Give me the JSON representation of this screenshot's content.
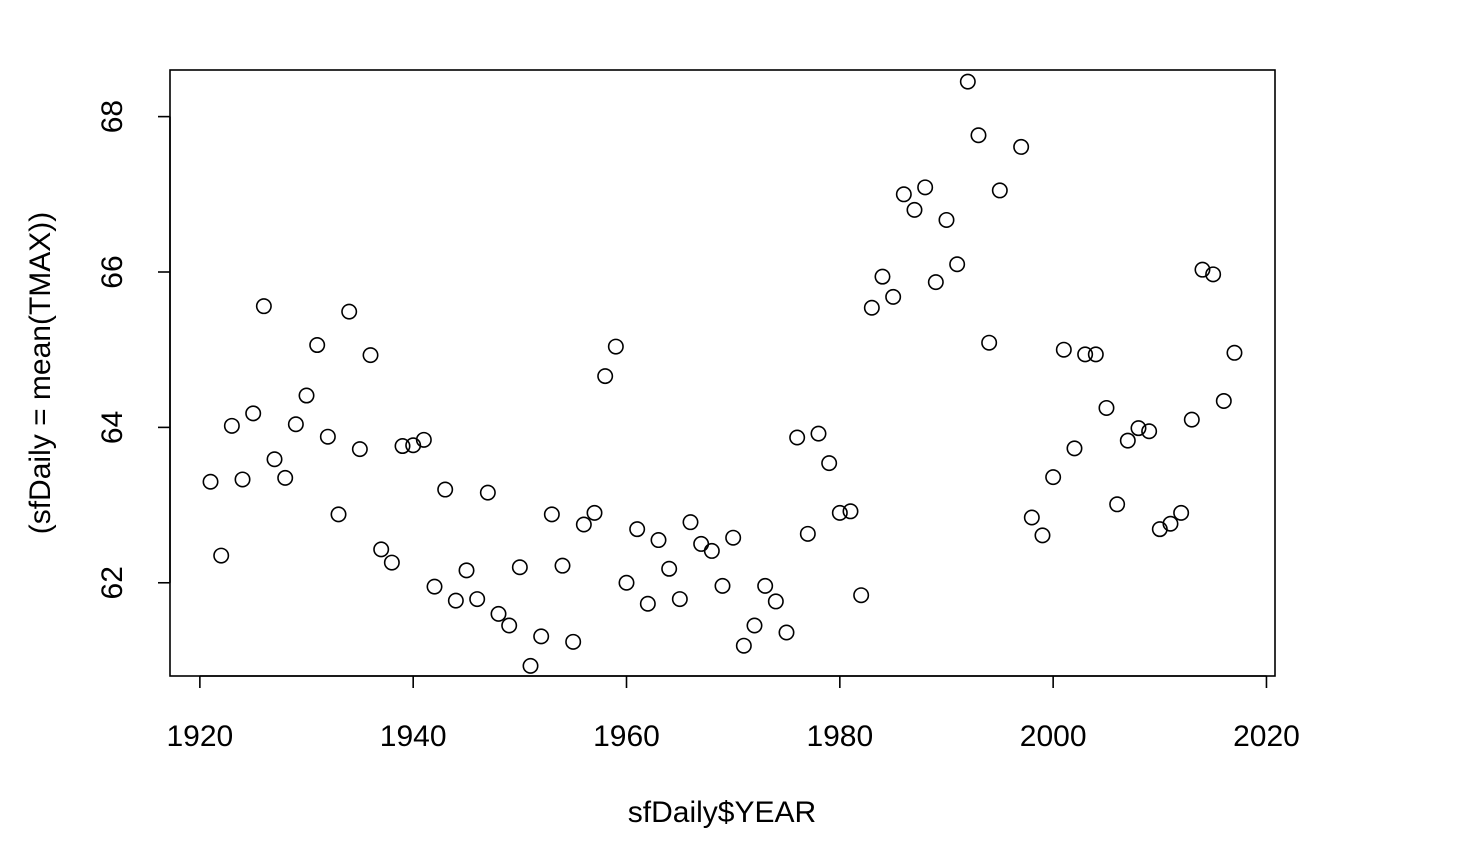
{
  "chart_data": {
    "type": "scatter",
    "xlabel": "sfDaily$YEAR",
    "ylabel": "(sfDaily = mean(TMAX))",
    "xlim": [
      1917.2,
      2020.8
    ],
    "ylim": [
      60.8,
      68.6
    ],
    "x_ticks": [
      1920,
      1940,
      1960,
      1980,
      2000,
      2020
    ],
    "y_ticks": [
      62,
      64,
      66,
      68
    ],
    "grid": false,
    "marker": "open-circle",
    "points": [
      {
        "x": 1921,
        "y": 63.3
      },
      {
        "x": 1922,
        "y": 62.35
      },
      {
        "x": 1923,
        "y": 64.02
      },
      {
        "x": 1924,
        "y": 63.33
      },
      {
        "x": 1925,
        "y": 64.18
      },
      {
        "x": 1926,
        "y": 65.56
      },
      {
        "x": 1927,
        "y": 63.59
      },
      {
        "x": 1928,
        "y": 63.35
      },
      {
        "x": 1929,
        "y": 64.04
      },
      {
        "x": 1930,
        "y": 64.41
      },
      {
        "x": 1931,
        "y": 65.06
      },
      {
        "x": 1932,
        "y": 63.88
      },
      {
        "x": 1933,
        "y": 62.88
      },
      {
        "x": 1934,
        "y": 65.49
      },
      {
        "x": 1935,
        "y": 63.72
      },
      {
        "x": 1936,
        "y": 64.93
      },
      {
        "x": 1937,
        "y": 62.43
      },
      {
        "x": 1938,
        "y": 62.26
      },
      {
        "x": 1939,
        "y": 63.76
      },
      {
        "x": 1940,
        "y": 63.77
      },
      {
        "x": 1941,
        "y": 63.84
      },
      {
        "x": 1942,
        "y": 61.95
      },
      {
        "x": 1943,
        "y": 63.2
      },
      {
        "x": 1944,
        "y": 61.77
      },
      {
        "x": 1945,
        "y": 62.16
      },
      {
        "x": 1946,
        "y": 61.79
      },
      {
        "x": 1947,
        "y": 63.16
      },
      {
        "x": 1948,
        "y": 61.6
      },
      {
        "x": 1949,
        "y": 61.45
      },
      {
        "x": 1950,
        "y": 62.2
      },
      {
        "x": 1951,
        "y": 60.93
      },
      {
        "x": 1952,
        "y": 61.31
      },
      {
        "x": 1953,
        "y": 62.88
      },
      {
        "x": 1954,
        "y": 62.22
      },
      {
        "x": 1955,
        "y": 61.24
      },
      {
        "x": 1956,
        "y": 62.75
      },
      {
        "x": 1957,
        "y": 62.9
      },
      {
        "x": 1958,
        "y": 64.66
      },
      {
        "x": 1959,
        "y": 65.04
      },
      {
        "x": 1960,
        "y": 62.0
      },
      {
        "x": 1961,
        "y": 62.69
      },
      {
        "x": 1962,
        "y": 61.73
      },
      {
        "x": 1963,
        "y": 62.55
      },
      {
        "x": 1964,
        "y": 62.18
      },
      {
        "x": 1965,
        "y": 61.79
      },
      {
        "x": 1966,
        "y": 62.78
      },
      {
        "x": 1967,
        "y": 62.5
      },
      {
        "x": 1968,
        "y": 62.41
      },
      {
        "x": 1969,
        "y": 61.96
      },
      {
        "x": 1970,
        "y": 62.58
      },
      {
        "x": 1971,
        "y": 61.19
      },
      {
        "x": 1972,
        "y": 61.45
      },
      {
        "x": 1973,
        "y": 61.96
      },
      {
        "x": 1974,
        "y": 61.76
      },
      {
        "x": 1975,
        "y": 61.36
      },
      {
        "x": 1976,
        "y": 63.87
      },
      {
        "x": 1977,
        "y": 62.63
      },
      {
        "x": 1978,
        "y": 63.92
      },
      {
        "x": 1979,
        "y": 63.54
      },
      {
        "x": 1980,
        "y": 62.9
      },
      {
        "x": 1981,
        "y": 62.92
      },
      {
        "x": 1982,
        "y": 61.84
      },
      {
        "x": 1983,
        "y": 65.54
      },
      {
        "x": 1984,
        "y": 65.94
      },
      {
        "x": 1985,
        "y": 65.68
      },
      {
        "x": 1986,
        "y": 67.0
      },
      {
        "x": 1987,
        "y": 66.8
      },
      {
        "x": 1988,
        "y": 67.09
      },
      {
        "x": 1989,
        "y": 65.87
      },
      {
        "x": 1990,
        "y": 66.67
      },
      {
        "x": 1991,
        "y": 66.1
      },
      {
        "x": 1992,
        "y": 68.45
      },
      {
        "x": 1993,
        "y": 67.76
      },
      {
        "x": 1994,
        "y": 65.09
      },
      {
        "x": 1995,
        "y": 67.05
      },
      {
        "x": 1997,
        "y": 67.61
      },
      {
        "x": 1998,
        "y": 62.84
      },
      {
        "x": 1999,
        "y": 62.61
      },
      {
        "x": 2000,
        "y": 63.36
      },
      {
        "x": 2001,
        "y": 65.0
      },
      {
        "x": 2002,
        "y": 63.73
      },
      {
        "x": 2003,
        "y": 64.94
      },
      {
        "x": 2004,
        "y": 64.94
      },
      {
        "x": 2005,
        "y": 64.25
      },
      {
        "x": 2006,
        "y": 63.01
      },
      {
        "x": 2007,
        "y": 63.83
      },
      {
        "x": 2008,
        "y": 63.99
      },
      {
        "x": 2009,
        "y": 63.95
      },
      {
        "x": 2010,
        "y": 62.69
      },
      {
        "x": 2011,
        "y": 62.76
      },
      {
        "x": 2012,
        "y": 62.9
      },
      {
        "x": 2013,
        "y": 64.1
      },
      {
        "x": 2014,
        "y": 66.03
      },
      {
        "x": 2015,
        "y": 65.97
      },
      {
        "x": 2016,
        "y": 64.34
      },
      {
        "x": 2017,
        "y": 64.96
      }
    ]
  }
}
